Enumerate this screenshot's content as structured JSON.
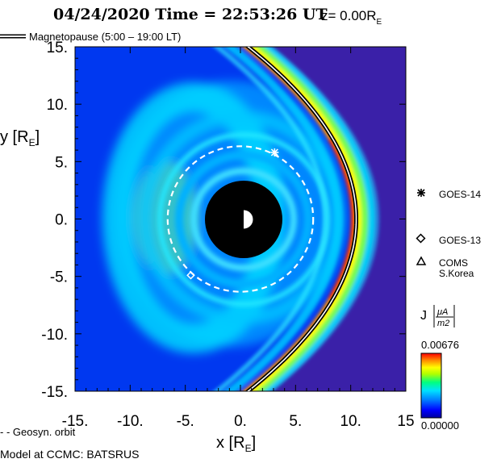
{
  "header": {
    "date_time": "04/24/2020 Time = 22:53:26 UT",
    "z_label": "z= 0.00R",
    "z_sub": "E"
  },
  "legend": {
    "magnetopause": "Magnetopause (5:00 – 19:00 LT)",
    "geosyn": "Geosyn. orbit",
    "model_credit": "Model at CCMC: BATSRUS"
  },
  "satellites": [
    {
      "name": "GOES-14",
      "marker": "asterisk"
    },
    {
      "name": "GOES-13",
      "marker": "diamond"
    },
    {
      "name": "COMS",
      "name2": "S.Korea",
      "marker": "triangle"
    }
  ],
  "colorbar": {
    "label_main": "J",
    "label_num": "μA",
    "label_den": "m2",
    "max_label": "0.00676",
    "min_label": "0.00000",
    "colors": [
      "#0000a0",
      "#0000ff",
      "#0080ff",
      "#00e0ff",
      "#00ff80",
      "#b0ff00",
      "#ffff00",
      "#ff8000",
      "#ff0000"
    ]
  },
  "chart_data": {
    "type": "heatmap",
    "xlabel": "x [R",
    "xlabel_sub": "E",
    "ylabel": "y [R",
    "ylabel_sub": "E",
    "xlim": [
      -15,
      15
    ],
    "ylim": [
      -15,
      15
    ],
    "xticks": [
      "-15.",
      "-10.",
      "-5.",
      "0.",
      "5.",
      "10.",
      "15"
    ],
    "yticks": [
      "15.",
      "10.",
      "5.",
      "0.",
      "-5.",
      "-10.",
      "-15."
    ],
    "geosync_radius": 6.6,
    "earth_inner_radius": 3.5,
    "magnetopause": {
      "standoff": 10.5,
      "flank_x_at_15": 0.7
    },
    "satellite_positions": [
      {
        "name": "GOES-14",
        "x": 3.1,
        "y": 5.8
      },
      {
        "name": "GOES-13",
        "x": -4.5,
        "y": -4.9
      }
    ]
  }
}
